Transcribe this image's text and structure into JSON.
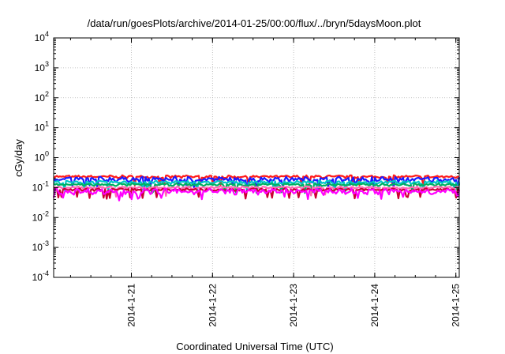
{
  "chart_data": {
    "type": "line",
    "title": "/data/run/goesPlots/archive/2014-01-25/00:00/flux/../bryn/5daysMoon.plot",
    "xlabel": "Coordinated Universal Time (UTC)",
    "ylabel": "cGy/day",
    "yscale": "log",
    "ylim": [
      0.0001,
      10000
    ],
    "y_ticks": [
      {
        "base": "10",
        "exp": "-4",
        "value": 0.0001
      },
      {
        "base": "10",
        "exp": "-3",
        "value": 0.001
      },
      {
        "base": "10",
        "exp": "-2",
        "value": 0.01
      },
      {
        "base": "10",
        "exp": "-1",
        "value": 0.1
      },
      {
        "base": "10",
        "exp": "0",
        "value": 1
      },
      {
        "base": "10",
        "exp": "1",
        "value": 10
      },
      {
        "base": "10",
        "exp": "2",
        "value": 100
      },
      {
        "base": "10",
        "exp": "3",
        "value": 1000
      },
      {
        "base": "10",
        "exp": "4",
        "value": 10000
      }
    ],
    "xlim": [
      "2014-01-20 01:00",
      "2014-01-25 01:00"
    ],
    "x_ticks": [
      "2014-1-21",
      "2014-1-22",
      "2014-1-23",
      "2014-1-24",
      "2014-1-25"
    ],
    "grid": true,
    "series": [
      {
        "color": "#ff1a1a",
        "level": 0.23,
        "spread": 0.09
      },
      {
        "color": "#1a1aff",
        "level": 0.19,
        "spread": 0.16
      },
      {
        "color": "#00c8c8",
        "level": 0.15,
        "spread": 0.1
      },
      {
        "color": "#00b060",
        "level": 0.125,
        "spread": 0.08
      },
      {
        "color": "#ff69b4",
        "level": 0.1,
        "spread": 0.08
      },
      {
        "color": "#cc0033",
        "level": 0.085,
        "spread": 0.08
      },
      {
        "color": "#ff00ff",
        "level": 0.075,
        "spread": 0.18
      }
    ]
  }
}
